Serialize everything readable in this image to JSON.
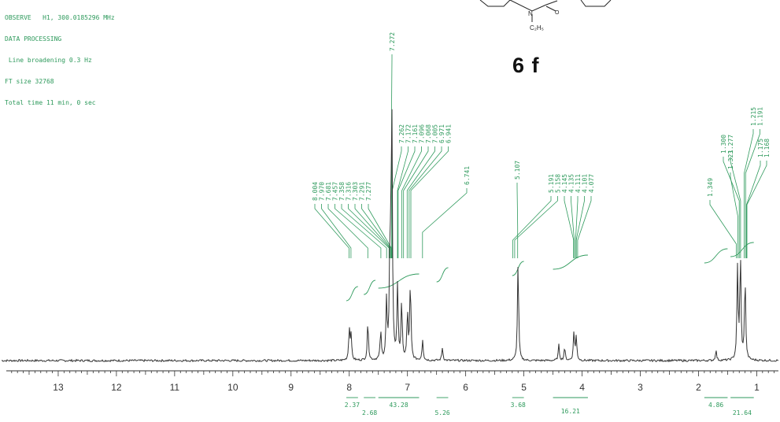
{
  "header_lines": [
    "OBSERVE   H1, 300.0185296 MHz",
    "DATA PROCESSING",
    " Line broadening 0.3 Hz",
    "FT size 32768",
    "Total time 11 min, 0 sec"
  ],
  "compound_label": "6 f",
  "structure_sub_label": "C₂H₅",
  "colors": {
    "spectrum": "#333333",
    "annotation": "#2e9a5c",
    "axis": "#333333",
    "title": "#111111"
  },
  "chart_data": {
    "type": "line",
    "xlabel": "",
    "ylabel": "",
    "x_range_ppm": [
      14.0,
      0.6
    ],
    "x_reversed": true,
    "x_ticks": [
      13,
      12,
      11,
      10,
      9,
      8,
      7,
      6,
      5,
      4,
      3,
      2,
      1
    ],
    "x_tick_labels": [
      "13",
      "12",
      "11",
      "10",
      "9",
      "8",
      "7",
      "6",
      "5",
      "4",
      "3",
      "2",
      "1"
    ],
    "peak_labels": [
      [
        "8.004",
        "7.970",
        "7.681",
        "7.457",
        "7.358",
        "7.316",
        "7.303",
        "7.291",
        "7.277"
      ],
      [
        "7.272"
      ],
      [
        "7.262",
        "7.172",
        "7.161",
        "7.096",
        "7.068",
        "7.005",
        "6.971",
        "6.941"
      ],
      [
        "6.741"
      ],
      [
        "5.107"
      ],
      [
        "5.191",
        "5.158",
        "4.145",
        "4.135",
        "4.111",
        "4.101",
        "4.077"
      ],
      [
        "1.349"
      ],
      [
        "1.323"
      ],
      [
        "1.300",
        "1.277"
      ],
      [
        "1.215",
        "1.191"
      ],
      [
        "1.175",
        "1.168"
      ]
    ],
    "peaks": [
      {
        "ppm": 8.0,
        "height": 0.12
      },
      {
        "ppm": 7.97,
        "height": 0.1
      },
      {
        "ppm": 7.68,
        "height": 0.15
      },
      {
        "ppm": 7.46,
        "height": 0.11
      },
      {
        "ppm": 7.36,
        "height": 0.22
      },
      {
        "ppm": 7.3,
        "height": 0.42
      },
      {
        "ppm": 7.27,
        "height": 1.0
      },
      {
        "ppm": 7.17,
        "height": 0.28
      },
      {
        "ppm": 7.1,
        "height": 0.22
      },
      {
        "ppm": 7.0,
        "height": 0.18
      },
      {
        "ppm": 6.95,
        "height": 0.3
      },
      {
        "ppm": 6.74,
        "height": 0.08
      },
      {
        "ppm": 6.4,
        "height": 0.05
      },
      {
        "ppm": 5.1,
        "height": 0.38
      },
      {
        "ppm": 4.4,
        "height": 0.06
      },
      {
        "ppm": 4.3,
        "height": 0.05
      },
      {
        "ppm": 4.14,
        "height": 0.11
      },
      {
        "ppm": 4.1,
        "height": 0.09
      },
      {
        "ppm": 1.7,
        "height": 0.04
      },
      {
        "ppm": 1.33,
        "height": 0.35
      },
      {
        "ppm": 1.28,
        "height": 0.4
      },
      {
        "ppm": 1.2,
        "height": 0.32
      }
    ],
    "integrals": [
      {
        "from": 8.05,
        "to": 7.85,
        "value": "2.37"
      },
      {
        "from": 7.75,
        "to": 7.55,
        "value": "2.68"
      },
      {
        "from": 7.5,
        "to": 6.8,
        "value": "43.28"
      },
      {
        "from": 6.5,
        "to": 6.3,
        "value": "5.26"
      },
      {
        "from": 5.2,
        "to": 5.0,
        "value": "3.68"
      },
      {
        "from": 4.5,
        "to": 3.9,
        "value": "16.21"
      },
      {
        "from": 1.9,
        "to": 1.5,
        "value": "4.86"
      },
      {
        "from": 1.45,
        "to": 1.05,
        "value": "21.64"
      }
    ]
  }
}
